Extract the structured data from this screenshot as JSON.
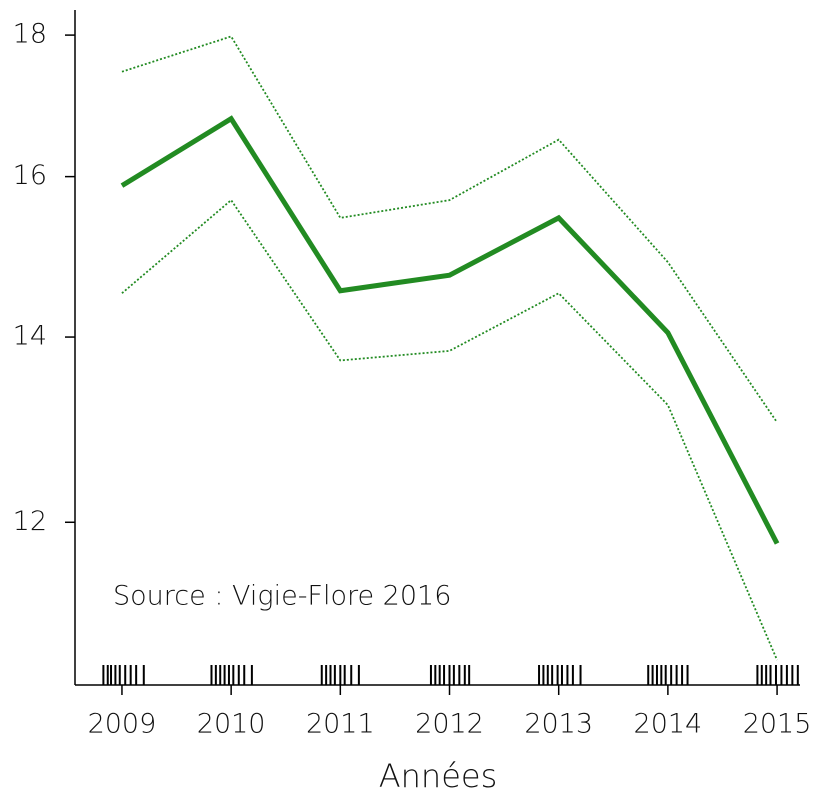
{
  "chart_data": {
    "type": "line",
    "x": [
      2009,
      2010,
      2011,
      2012,
      2013,
      2014,
      2015
    ],
    "series": [
      {
        "color": "#228b22",
        "style": "solid",
        "values": [
          15.88,
          16.79,
          14.55,
          14.74,
          15.46,
          14.05,
          11.79
        ]
      },
      {
        "color": "#228b22",
        "style": "dotted",
        "values": [
          17.46,
          17.98,
          15.46,
          15.69,
          16.5,
          14.9,
          13.04
        ]
      },
      {
        "color": "#228b22",
        "style": "dotted",
        "values": [
          14.52,
          15.69,
          13.73,
          13.84,
          14.52,
          13.23,
          10.7
        ]
      }
    ],
    "rug": [
      2008.83,
      2008.87,
      2008.9,
      2008.94,
      2008.98,
      2009.03,
      2009.08,
      2009.13,
      2009.2,
      2009.82,
      2009.86,
      2009.9,
      2009.94,
      2009.98,
      2010.02,
      2010.07,
      2010.12,
      2010.19,
      2010.83,
      2010.87,
      2010.91,
      2010.95,
      2011.0,
      2011.04,
      2011.1,
      2011.17,
      2011.83,
      2011.87,
      2011.91,
      2011.95,
      2012.0,
      2012.04,
      2012.09,
      2012.14,
      2012.18,
      2012.82,
      2012.86,
      2012.9,
      2012.94,
      2012.99,
      2013.03,
      2013.08,
      2013.13,
      2013.2,
      2013.82,
      2013.86,
      2013.9,
      2013.94,
      2013.98,
      2014.03,
      2014.08,
      2014.13,
      2014.18,
      2014.82,
      2014.86,
      2014.9,
      2014.94,
      2014.99,
      2015.04,
      2015.09,
      2015.14,
      2015.19
    ],
    "xlim": [
      2008.57,
      2015.21
    ],
    "xticks": [
      2009,
      2010,
      2011,
      2012,
      2013,
      2014,
      2015
    ],
    "ylim": [
      10.48,
      18.38
    ],
    "yticks": [
      12,
      14,
      16,
      18
    ],
    "log_y": true,
    "xlabel": "Années",
    "annotation": "Source : Vigie-Flore 2016",
    "annotation_color": "#c0141c"
  }
}
